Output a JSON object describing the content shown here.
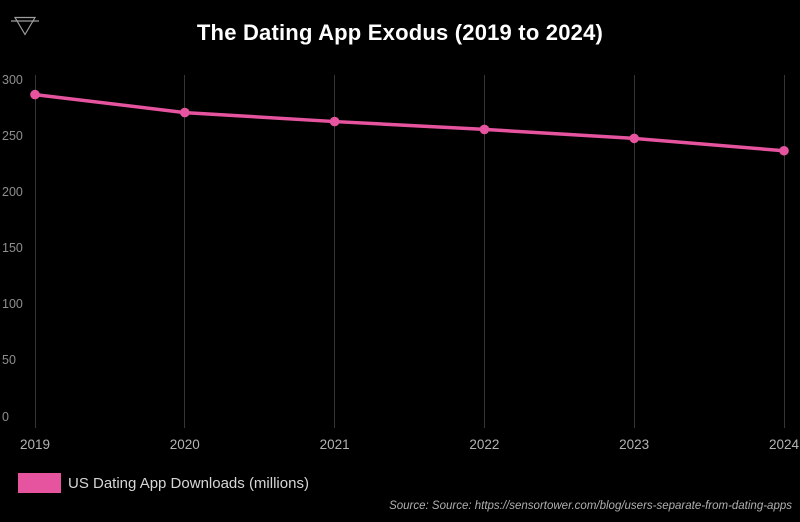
{
  "header": {
    "title": "The Dating App Exodus (2019 to 2024)",
    "drill_icon": "filter-funnel-icon"
  },
  "chart_data": {
    "type": "line",
    "title": "The Dating App Exodus (2019 to 2024)",
    "categories": [
      "2019",
      "2020",
      "2021",
      "2022",
      "2023",
      "2024"
    ],
    "series": [
      {
        "name": "US Dating App Downloads (millions)",
        "color": "#e6549f",
        "values": [
          287,
          271,
          263,
          256,
          248,
          237
        ]
      }
    ],
    "xlabel": "",
    "ylabel": "",
    "y_ticks": [
      300,
      250,
      200,
      150,
      100,
      50,
      0
    ],
    "ylim": [
      0,
      300
    ],
    "grid": "vertical-only",
    "legend_position": "bottom-left",
    "background": "#000000"
  },
  "legend": {
    "label": "US Dating App Downloads (millions)",
    "swatch_color": "#e6549f"
  },
  "footer": {
    "source": "Source: Source: https://sensortower.com/blog/users-separate-from-dating-apps"
  },
  "colors": {
    "background": "#000000",
    "accent_pink": "#e6549f",
    "gridline": "#353535",
    "y_tick_text": "#8f8f8f",
    "x_tick_text": "#b3b3b3",
    "title_text": "#ffffff",
    "legend_text": "#d6d6d6",
    "source_text": "#b0b0b0",
    "icon_stroke": "#9e9e9e"
  }
}
